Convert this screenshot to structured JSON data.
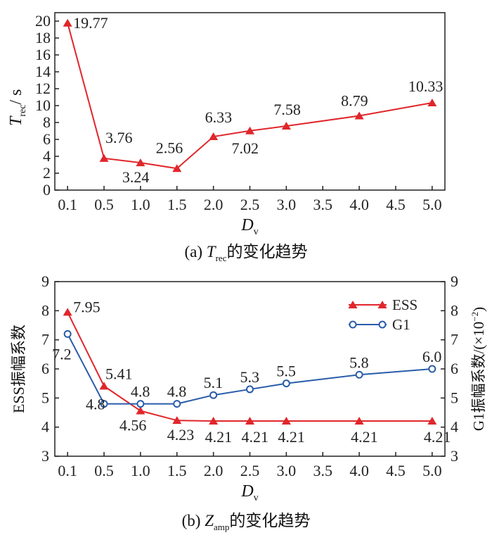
{
  "chart_data": [
    {
      "type": "line",
      "title": "",
      "caption": {
        "prefix": "(a) ",
        "var": "T",
        "sub": "rec",
        "suffix": "的变化趋势"
      },
      "xlabel": {
        "var": "D",
        "sub": "v"
      },
      "ylabel": {
        "var": "T",
        "sub": "rec",
        "unit": "/ s"
      },
      "x_ticks": [
        "0.1",
        "0.5",
        "1.0",
        "1.5",
        "2.0",
        "2.5",
        "3.0",
        "3.5",
        "4.0",
        "4.5",
        "5.0"
      ],
      "y_ticks": [
        "0",
        "2",
        "4",
        "6",
        "8",
        "10",
        "12",
        "14",
        "16",
        "18",
        "20"
      ],
      "ylim": [
        0,
        21
      ],
      "color": "#e0262b",
      "marker": "triangle",
      "series": [
        {
          "x": [
            "0.1",
            "0.5",
            "1.0",
            "1.5",
            "2.0",
            "2.5",
            "3.0",
            "4.0",
            "5.0"
          ],
          "values": [
            19.77,
            3.76,
            3.24,
            2.56,
            6.33,
            7.02,
            7.58,
            8.79,
            10.33
          ],
          "labels": [
            "19.77",
            "3.76",
            "3.24",
            "2.56",
            "6.33",
            "7.02",
            "7.58",
            "8.79",
            "10.33"
          ]
        }
      ]
    },
    {
      "type": "line",
      "title": "",
      "caption": {
        "prefix": "(b) ",
        "var": "Z",
        "sub": "amp",
        "suffix": "的变化趋势"
      },
      "xlabel": {
        "var": "D",
        "sub": "v"
      },
      "ylabel_left": "ESS振幅系数",
      "ylabel_right": "G1振幅系数/(×10",
      "ylabel_right_sup": "−2",
      "ylabel_right_end": ")",
      "x_ticks": [
        "0.1",
        "0.5",
        "1.0",
        "1.5",
        "2.0",
        "2.5",
        "3.0",
        "3.5",
        "4.0",
        "4.5",
        "5.0"
      ],
      "y_ticks": [
        "3",
        "4",
        "5",
        "6",
        "7",
        "8",
        "9"
      ],
      "ylim": [
        3,
        9
      ],
      "legend_position": "top-right",
      "series": [
        {
          "name": "ESS",
          "color": "#e0262b",
          "marker": "triangle",
          "x": [
            "0.1",
            "0.5",
            "1.0",
            "1.5",
            "2.0",
            "2.5",
            "3.0",
            "4.0",
            "5.0"
          ],
          "values": [
            7.95,
            5.41,
            4.56,
            4.23,
            4.21,
            4.21,
            4.21,
            4.21,
            4.21
          ],
          "labels": [
            "7.95",
            "5.41",
            "4.56",
            "4.23",
            "4.21",
            "4.21",
            "4.21",
            "4.21",
            "4.21"
          ]
        },
        {
          "name": "G1",
          "color": "#2a5caa",
          "marker": "circle",
          "x": [
            "0.1",
            "0.5",
            "1.0",
            "1.5",
            "2.0",
            "2.5",
            "3.0",
            "4.0",
            "5.0"
          ],
          "values": [
            7.2,
            4.8,
            4.8,
            4.8,
            5.1,
            5.3,
            5.5,
            5.8,
            6.0
          ],
          "labels": [
            "7.2",
            "4.8",
            "4.8",
            "4.8",
            "5.1",
            "5.3",
            "5.5",
            "5.8",
            "6.0"
          ]
        }
      ]
    }
  ]
}
